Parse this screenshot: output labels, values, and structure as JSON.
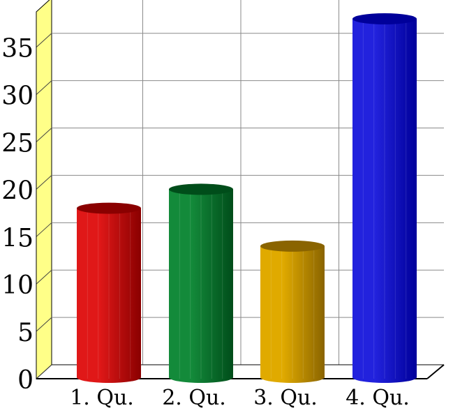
{
  "chart_data": {
    "type": "bar",
    "title": "",
    "xlabel": "",
    "ylabel": "",
    "categories": [
      "1. Qu.",
      "2. Qu.",
      "3. Qu.",
      "4. Qu."
    ],
    "values": [
      18,
      20,
      14,
      38
    ],
    "ylim": [
      0,
      38
    ],
    "yticks": [
      0,
      5,
      10,
      15,
      20,
      25,
      30,
      35
    ],
    "grid": true,
    "style": "3d-cylinder",
    "colors": [
      "#e01818",
      "#138a3a",
      "#e0aa00",
      "#2222dd"
    ],
    "dark_colors": [
      "#8a0000",
      "#004d1a",
      "#8a6400",
      "#00009a"
    ],
    "wall_color": "#ffff88"
  }
}
